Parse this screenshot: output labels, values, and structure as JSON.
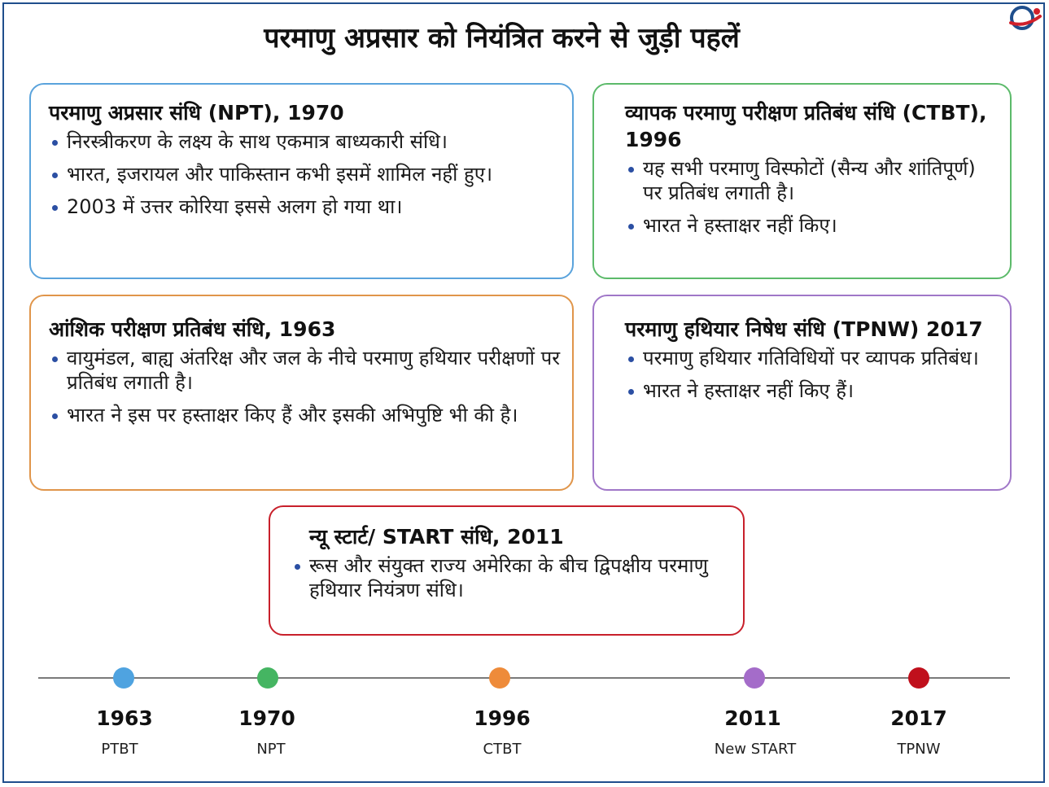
{
  "title": "परमाणु अप्रसार को नियंत्रित करने से जुड़ी पहलें",
  "colors": {
    "npt": "#5aa3dc",
    "ctbt": "#5cba6a",
    "ptbt": "#e0954a",
    "tpnw": "#a077c8",
    "start": "#c8202b"
  },
  "cards": {
    "npt": {
      "heading": "परमाणु अप्रसार संधि (NPT), 1970",
      "points": [
        "निरस्त्रीकरण के लक्ष्य के साथ एकमात्र बाध्यकारी संधि।",
        "भारत, इजरायल और पाकिस्तान कभी इसमें शामिल नहीं हुए।",
        "2003 में उत्तर कोरिया इससे अलग हो गया था।"
      ]
    },
    "ctbt": {
      "heading": "व्यापक परमाणु परीक्षण प्रतिबंध संधि (CTBT), 1996",
      "points": [
        "यह सभी परमाणु विस्फोटों (सैन्य और शांतिपूर्ण) पर प्रतिबंध लगाती है।",
        "भारत ने हस्ताक्षर नहीं किए।"
      ]
    },
    "ptbt": {
      "heading": "आंशिक परीक्षण प्रतिबंध संधि, 1963",
      "points": [
        "वायुमंडल, बाह्य अंतरिक्ष और जल के नीचे परमाणु हथियार परीक्षणों पर प्रतिबंध लगाती है।",
        "भारत ने इस पर हस्ताक्षर किए हैं और इसकी अभिपुष्टि भी की है।"
      ]
    },
    "tpnw": {
      "heading": "परमाणु हथियार निषेध संधि (TPNW) 2017",
      "points": [
        "परमाणु हथियार गतिविधियों पर व्यापक प्रतिबंध।",
        "भारत ने हस्ताक्षर नहीं किए हैं।"
      ]
    },
    "start": {
      "heading": "न्यू स्टार्ट/ START संधि, 2011",
      "points": [
        "रूस और संयुक्त राज्य अमेरिका के बीच द्विपक्षीय परमाणु हथियार नियंत्रण संधि।"
      ]
    }
  },
  "timeline": [
    {
      "year": "1963",
      "label": "PTBT",
      "color": "#4fa3e0"
    },
    {
      "year": "1970",
      "label": "NPT",
      "color": "#45b562"
    },
    {
      "year": "1996",
      "label": "CTBT",
      "color": "#ee8b3a"
    },
    {
      "year": "2011",
      "label": "New START",
      "color": "#a46cc9"
    },
    {
      "year": "2017",
      "label": "TPNW",
      "color": "#c0101c"
    }
  ]
}
